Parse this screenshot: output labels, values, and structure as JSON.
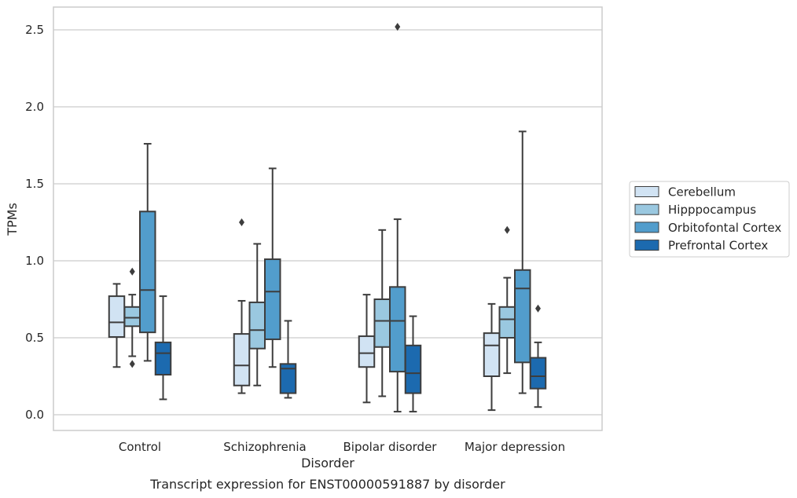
{
  "chart_data": {
    "type": "box",
    "xlabel": "Disorder",
    "ylabel": "TPMs",
    "caption": "Transcript expression for ENST00000591887 by disorder",
    "ylim": [
      -0.1,
      2.65
    ],
    "yticks": [
      "0.0",
      "0.5",
      "1.0",
      "1.5",
      "2.0",
      "2.5"
    ],
    "grid": "horizontal",
    "legend_position": "right",
    "categories": [
      "Control",
      "Schizophrenia",
      "Bipolar disorder",
      "Major depression"
    ],
    "series": [
      {
        "name": "Cerebellum",
        "color": "#d1e3f3",
        "boxes": [
          {
            "whisker_low": 0.31,
            "q1": 0.505,
            "median": 0.6,
            "q3": 0.77,
            "whisker_high": 0.85,
            "outliers": []
          },
          {
            "whisker_low": 0.14,
            "q1": 0.19,
            "median": 0.32,
            "q3": 0.525,
            "whisker_high": 0.74,
            "outliers": [
              1.25
            ]
          },
          {
            "whisker_low": 0.08,
            "q1": 0.31,
            "median": 0.4,
            "q3": 0.51,
            "whisker_high": 0.78,
            "outliers": []
          },
          {
            "whisker_low": 0.03,
            "q1": 0.25,
            "median": 0.45,
            "q3": 0.53,
            "whisker_high": 0.72,
            "outliers": []
          }
        ]
      },
      {
        "name": "Hipppocampus",
        "color": "#9ac8e0",
        "boxes": [
          {
            "whisker_low": 0.38,
            "q1": 0.575,
            "median": 0.63,
            "q3": 0.7,
            "whisker_high": 0.78,
            "outliers": [
              0.93,
              0.33
            ]
          },
          {
            "whisker_low": 0.19,
            "q1": 0.43,
            "median": 0.55,
            "q3": 0.73,
            "whisker_high": 1.11,
            "outliers": []
          },
          {
            "whisker_low": 0.12,
            "q1": 0.44,
            "median": 0.61,
            "q3": 0.75,
            "whisker_high": 1.2,
            "outliers": []
          },
          {
            "whisker_low": 0.27,
            "q1": 0.5,
            "median": 0.62,
            "q3": 0.7,
            "whisker_high": 0.89,
            "outliers": [
              1.2
            ]
          }
        ]
      },
      {
        "name": "Orbitofontal Cortex",
        "color": "#529dcc",
        "boxes": [
          {
            "whisker_low": 0.35,
            "q1": 0.535,
            "median": 0.81,
            "q3": 1.32,
            "whisker_high": 1.76,
            "outliers": []
          },
          {
            "whisker_low": 0.31,
            "q1": 0.49,
            "median": 0.8,
            "q3": 1.01,
            "whisker_high": 1.6,
            "outliers": []
          },
          {
            "whisker_low": 0.02,
            "q1": 0.28,
            "median": 0.61,
            "q3": 0.83,
            "whisker_high": 1.27,
            "outliers": [
              2.52
            ]
          },
          {
            "whisker_low": 0.14,
            "q1": 0.34,
            "median": 0.82,
            "q3": 0.94,
            "whisker_high": 1.84,
            "outliers": []
          }
        ]
      },
      {
        "name": "Prefrontal Cortex",
        "color": "#1c6aaf",
        "boxes": [
          {
            "whisker_low": 0.1,
            "q1": 0.26,
            "median": 0.4,
            "q3": 0.47,
            "whisker_high": 0.77,
            "outliers": []
          },
          {
            "whisker_low": 0.11,
            "q1": 0.14,
            "median": 0.3,
            "q3": 0.33,
            "whisker_high": 0.61,
            "outliers": []
          },
          {
            "whisker_low": 0.02,
            "q1": 0.14,
            "median": 0.27,
            "q3": 0.45,
            "whisker_high": 0.64,
            "outliers": []
          },
          {
            "whisker_low": 0.05,
            "q1": 0.17,
            "median": 0.25,
            "q3": 0.37,
            "whisker_high": 0.47,
            "outliers": [
              0.69
            ]
          }
        ]
      }
    ]
  }
}
